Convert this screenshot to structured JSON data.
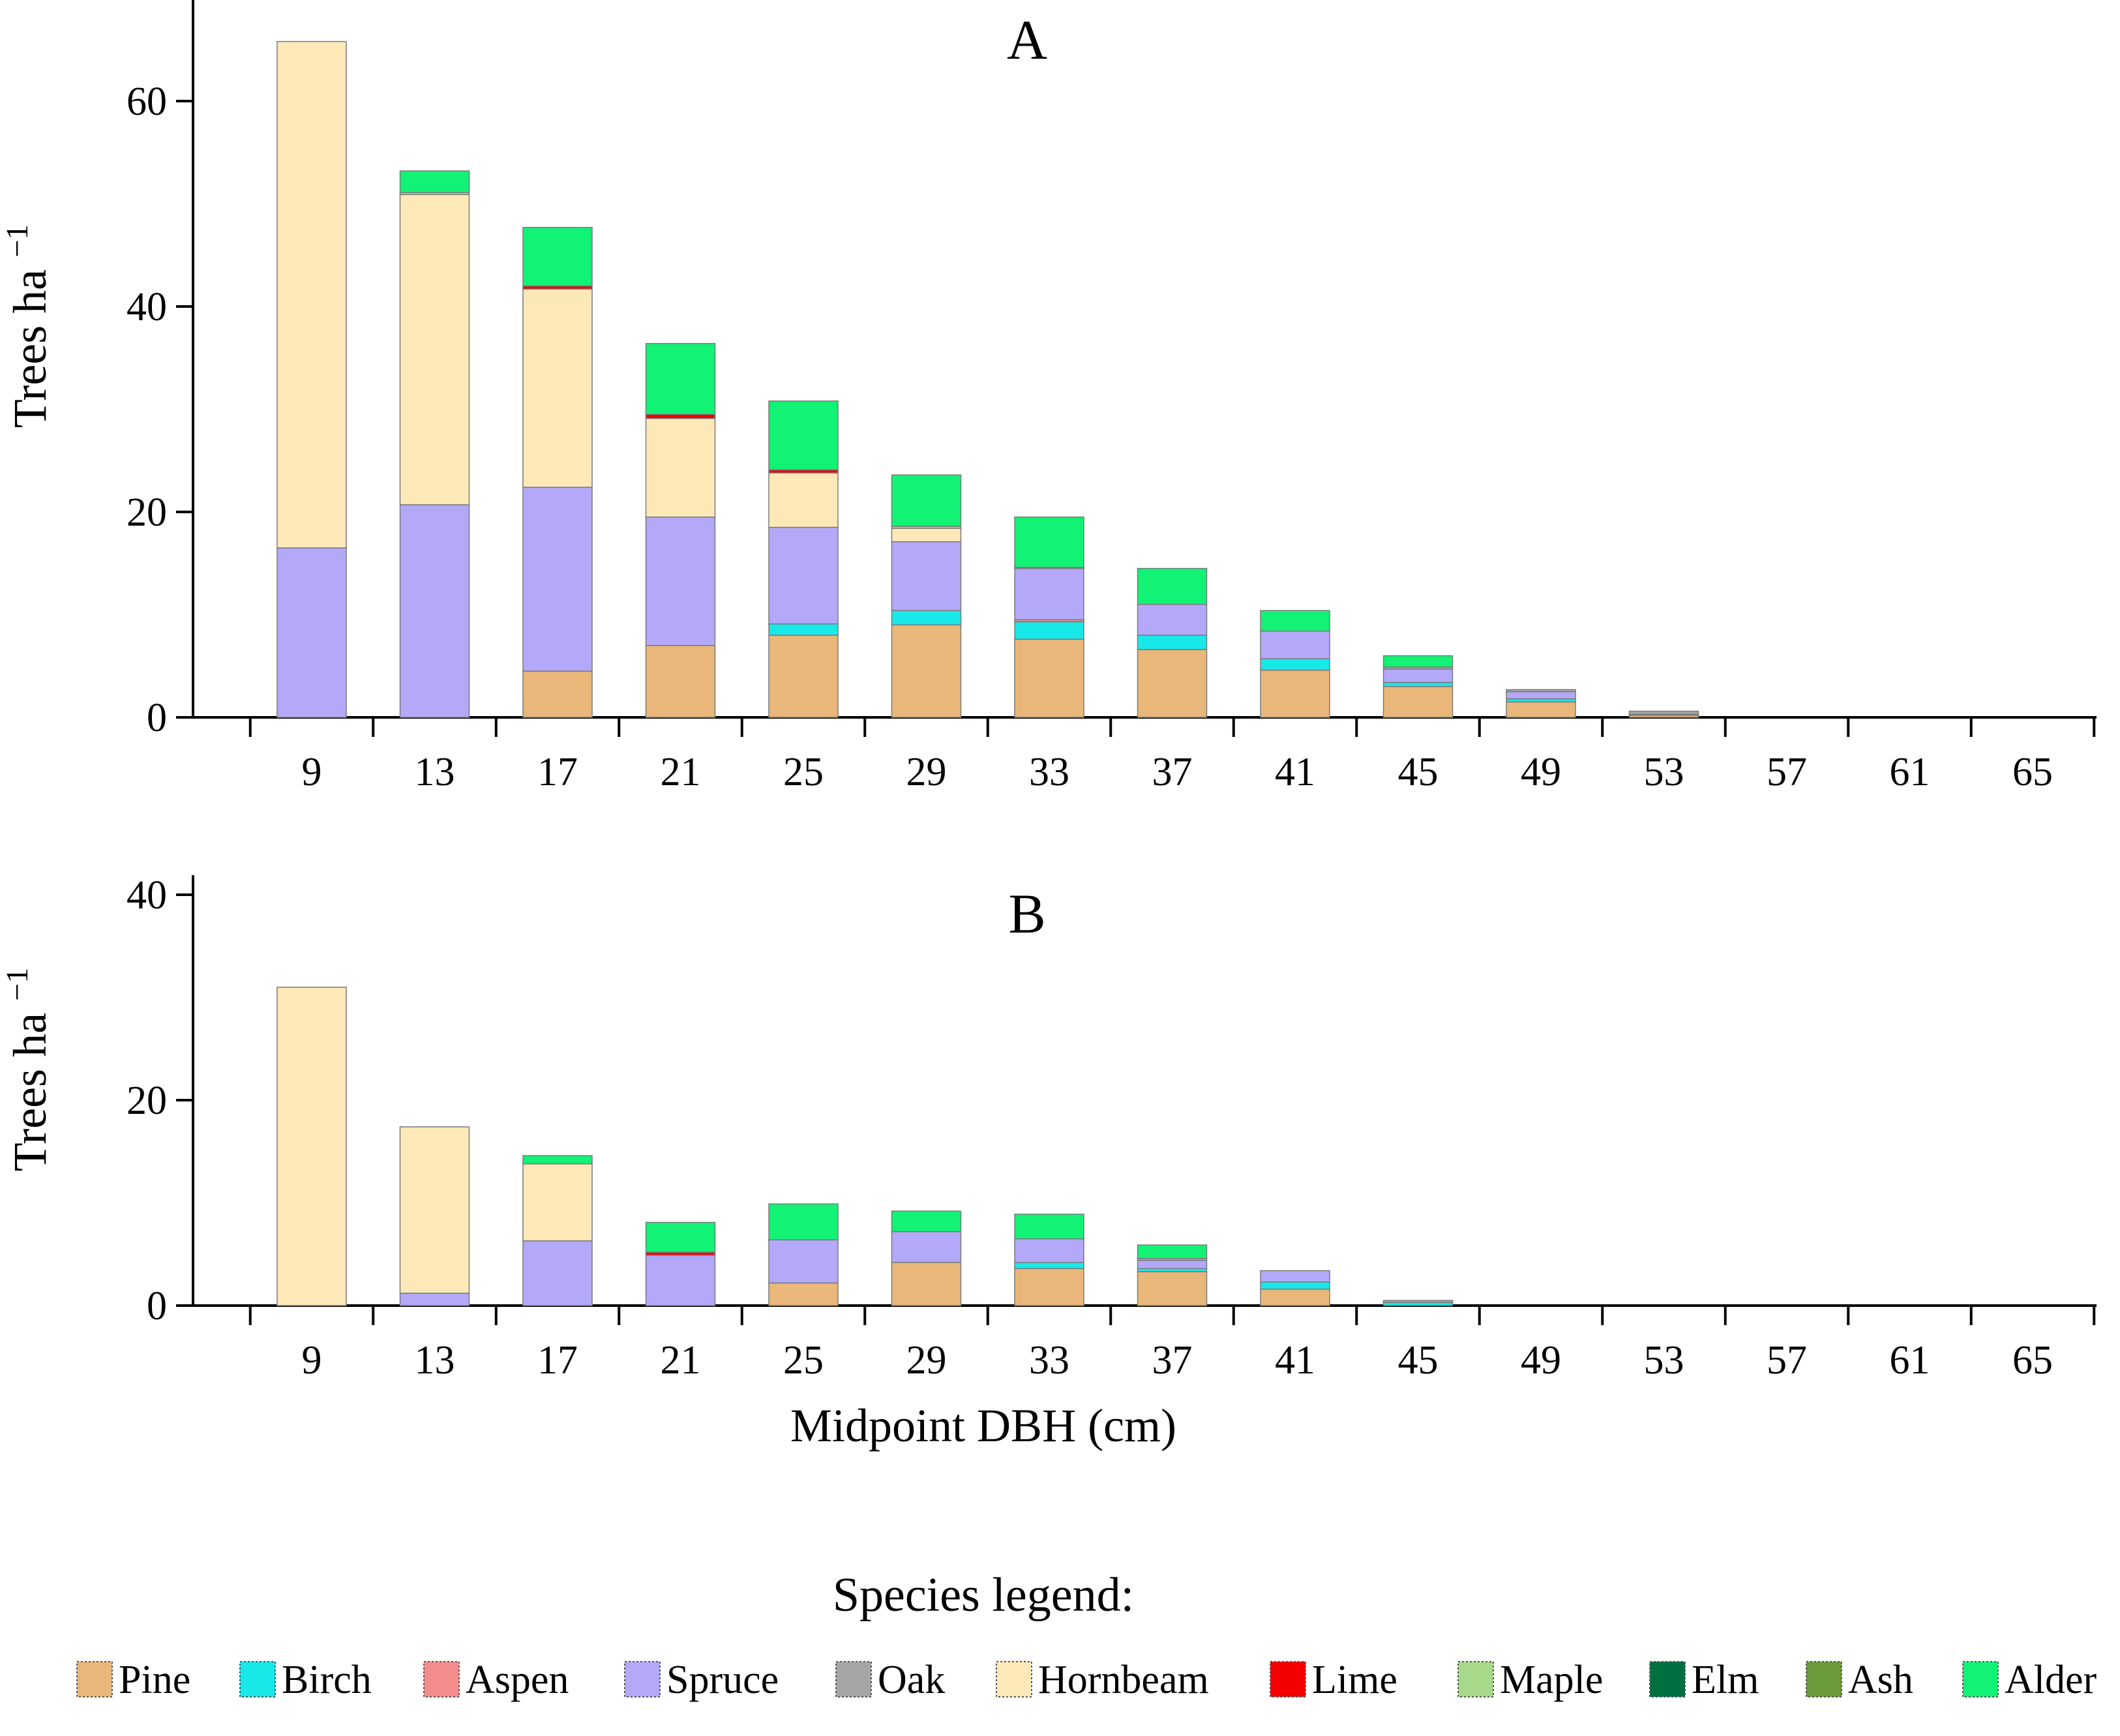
{
  "figure": {
    "xlabel": "Midpoint DBH (cm)",
    "legend_title": "Species legend:"
  },
  "species": [
    {
      "name": "Pine",
      "color": "#e8b779"
    },
    {
      "name": "Birch",
      "color": "#19e8e8"
    },
    {
      "name": "Aspen",
      "color": "#f48c8c"
    },
    {
      "name": "Spruce",
      "color": "#b3a9f8"
    },
    {
      "name": "Oak",
      "color": "#a6a6a6"
    },
    {
      "name": "Hornbeam",
      "color": "#fde8b8"
    },
    {
      "name": "Lime",
      "color": "#f50000"
    },
    {
      "name": "Maple",
      "color": "#a8d88a"
    },
    {
      "name": "Elm",
      "color": "#007040"
    },
    {
      "name": "Ash",
      "color": "#6a9a3a"
    },
    {
      "name": "Alder",
      "color": "#12f275"
    }
  ],
  "chart_data": [
    {
      "type": "bar",
      "stacked": true,
      "title": "A",
      "ylabel": "Trees ha",
      "ylabel_sup": "−1",
      "xlabel": "",
      "ylim": [
        0,
        70
      ],
      "yticks": [
        0,
        20,
        40,
        60
      ],
      "categories": [
        "9",
        "13",
        "17",
        "21",
        "25",
        "29",
        "33",
        "37",
        "41",
        "45",
        "49",
        "53",
        "57",
        "61",
        "65"
      ],
      "series": [
        {
          "name": "Pine",
          "values": [
            0,
            0,
            4.5,
            7,
            8,
            9,
            7.6,
            6.6,
            4.6,
            3,
            1.5,
            0.2,
            0,
            0,
            0
          ]
        },
        {
          "name": "Birch",
          "values": [
            0,
            0,
            0,
            0,
            1.1,
            1.4,
            1.7,
            1.4,
            1.1,
            0.4,
            0.3,
            0,
            0,
            0,
            0
          ]
        },
        {
          "name": "Aspen",
          "values": [
            0,
            0,
            0,
            0,
            0,
            0,
            0.2,
            0,
            0,
            0,
            0,
            0,
            0,
            0,
            0
          ]
        },
        {
          "name": "Spruce",
          "values": [
            16.5,
            20.7,
            17.9,
            12.5,
            9.4,
            6.7,
            5,
            3,
            2.7,
            1.3,
            0.7,
            0.1,
            0,
            0,
            0
          ]
        },
        {
          "name": "Oak",
          "values": [
            0,
            0,
            0,
            0,
            0,
            0,
            0,
            0,
            0,
            0.2,
            0.2,
            0.3,
            0,
            0,
            0
          ]
        },
        {
          "name": "Hornbeam",
          "values": [
            49.3,
            30.2,
            19.3,
            9.6,
            5.3,
            1.3,
            0,
            0,
            0,
            0,
            0,
            0,
            0,
            0,
            0
          ]
        },
        {
          "name": "Lime",
          "values": [
            0,
            0,
            0.3,
            0.4,
            0.3,
            0,
            0,
            0,
            0,
            0,
            0,
            0,
            0,
            0,
            0
          ]
        },
        {
          "name": "Maple",
          "values": [
            0,
            0.2,
            0,
            0,
            0,
            0.2,
            0.1,
            0,
            0,
            0,
            0,
            0,
            0,
            0,
            0
          ]
        },
        {
          "name": "Elm",
          "values": [
            0,
            0,
            0,
            0,
            0,
            0,
            0,
            0,
            0,
            0,
            0,
            0,
            0,
            0,
            0
          ]
        },
        {
          "name": "Ash",
          "values": [
            0,
            0,
            0,
            0,
            0,
            0,
            0,
            0,
            0,
            0,
            0,
            0,
            0,
            0,
            0
          ]
        },
        {
          "name": "Alder",
          "values": [
            0,
            2.1,
            5.7,
            6.9,
            6.7,
            5,
            4.9,
            3.5,
            2,
            1.1,
            0,
            0,
            0,
            0,
            0
          ]
        }
      ]
    },
    {
      "type": "bar",
      "stacked": true,
      "title": "B",
      "ylabel": "Trees ha",
      "ylabel_sup": "−1",
      "xlabel": "Midpoint DBH (cm)",
      "ylim": [
        0,
        42
      ],
      "yticks": [
        0,
        20,
        40
      ],
      "categories": [
        "9",
        "13",
        "17",
        "21",
        "25",
        "29",
        "33",
        "37",
        "41",
        "45",
        "49",
        "53",
        "57",
        "61",
        "65"
      ],
      "series": [
        {
          "name": "Pine",
          "values": [
            0,
            0,
            0,
            0,
            2.2,
            4.2,
            3.6,
            3.3,
            1.6,
            0,
            0,
            0,
            0,
            0,
            0
          ]
        },
        {
          "name": "Birch",
          "values": [
            0,
            0,
            0,
            0,
            0,
            0,
            0.6,
            0.3,
            0.7,
            0.3,
            0,
            0,
            0,
            0,
            0
          ]
        },
        {
          "name": "Aspen",
          "values": [
            0,
            0,
            0,
            0,
            0,
            0,
            0,
            0,
            0,
            0,
            0,
            0,
            0,
            0,
            0
          ]
        },
        {
          "name": "Spruce",
          "values": [
            0,
            1.2,
            6.3,
            4.9,
            4.2,
            3,
            2.3,
            0.8,
            1.1,
            0,
            0,
            0,
            0,
            0,
            0
          ]
        },
        {
          "name": "Oak",
          "values": [
            0,
            0,
            0,
            0,
            0,
            0,
            0,
            0.2,
            0,
            0.2,
            0,
            0,
            0,
            0,
            0
          ]
        },
        {
          "name": "Hornbeam",
          "values": [
            31,
            16.2,
            7.5,
            0,
            0,
            0,
            0,
            0,
            0,
            0,
            0,
            0,
            0,
            0,
            0
          ]
        },
        {
          "name": "Lime",
          "values": [
            0,
            0,
            0,
            0.3,
            0,
            0,
            0,
            0,
            0,
            0,
            0,
            0,
            0,
            0,
            0
          ]
        },
        {
          "name": "Maple",
          "values": [
            0,
            0,
            0,
            0,
            0,
            0,
            0,
            0,
            0,
            0,
            0,
            0,
            0,
            0,
            0
          ]
        },
        {
          "name": "Elm",
          "values": [
            0,
            0,
            0,
            0,
            0,
            0,
            0,
            0,
            0,
            0,
            0,
            0,
            0,
            0,
            0
          ]
        },
        {
          "name": "Ash",
          "values": [
            0,
            0,
            0,
            0,
            0,
            0,
            0,
            0,
            0,
            0,
            0,
            0,
            0,
            0,
            0
          ]
        },
        {
          "name": "Alder",
          "values": [
            0,
            0,
            0.8,
            2.9,
            3.5,
            2,
            2.4,
            1.3,
            0,
            0,
            0,
            0,
            0,
            0,
            0
          ]
        }
      ]
    }
  ]
}
